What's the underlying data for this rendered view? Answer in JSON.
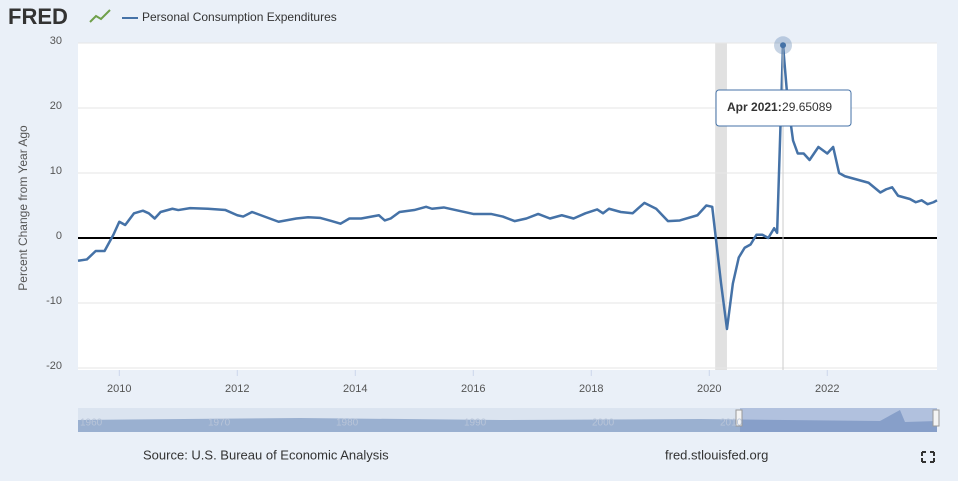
{
  "logo": "FRED",
  "chart_data": {
    "type": "line",
    "y_label": "Percent Change from Year Ago",
    "xlim": [
      2009.3,
      2023.86
    ],
    "xticks": [
      2010,
      2012,
      2014,
      2016,
      2018,
      2020,
      2022
    ],
    "ylim": [
      -20,
      30
    ],
    "yticks": [
      30,
      20,
      10,
      0,
      -10,
      -20
    ],
    "grid": true,
    "recession": [
      2020.1,
      2020.3
    ],
    "tooltip_label": "Apr 2021:",
    "x": [
      2009.3,
      2009.45,
      2009.6,
      2009.75,
      2009.9,
      2010.0,
      2010.1,
      2010.25,
      2010.4,
      2010.5,
      2010.6,
      2010.7,
      2010.9,
      2011.0,
      2011.2,
      2011.5,
      2011.8,
      2012.0,
      2012.1,
      2012.25,
      2012.4,
      2012.7,
      2013.0,
      2013.2,
      2013.4,
      2013.6,
      2013.75,
      2013.9,
      2014.1,
      2014.4,
      2014.5,
      2014.6,
      2014.75,
      2015.0,
      2015.2,
      2015.3,
      2015.5,
      2015.75,
      2016.0,
      2016.3,
      2016.5,
      2016.7,
      2016.9,
      2017.1,
      2017.3,
      2017.5,
      2017.7,
      2017.9,
      2018.1,
      2018.2,
      2018.3,
      2018.5,
      2018.7,
      2018.8,
      2018.9,
      2019.1,
      2019.3,
      2019.5,
      2019.8,
      2019.95,
      2020.05,
      2020.2,
      2020.3,
      2020.4,
      2020.5,
      2020.6,
      2020.7,
      2020.8,
      2020.9,
      2021.0,
      2021.1,
      2021.15,
      2021.25,
      2021.33,
      2021.42,
      2021.5,
      2021.6,
      2021.7,
      2021.85,
      2022.0,
      2022.1,
      2022.2,
      2022.3,
      2022.5,
      2022.7,
      2022.9,
      2023.0,
      2023.1,
      2023.2,
      2023.4,
      2023.5,
      2023.6,
      2023.7,
      2023.8,
      2023.86
    ],
    "series": [
      {
        "name": "Personal Consumption Expenditures",
        "color": "#4572a7",
        "values": [
          -3.5,
          -3.3,
          -2,
          -2,
          0.5,
          2.5,
          2.0,
          3.8,
          4.2,
          3.8,
          3.0,
          4.0,
          4.5,
          4.3,
          4.6,
          4.5,
          4.3,
          3.5,
          3.3,
          4.0,
          3.5,
          2.5,
          3.0,
          3.2,
          3.1,
          2.6,
          2.2,
          3.0,
          3.0,
          3.5,
          2.7,
          3.0,
          4.0,
          4.3,
          4.8,
          4.5,
          4.7,
          4.2,
          3.7,
          3.7,
          3.3,
          2.6,
          3.0,
          3.7,
          3.0,
          3.5,
          3.0,
          3.8,
          4.4,
          3.8,
          4.5,
          4.0,
          3.8,
          4.6,
          5.4,
          4.5,
          2.6,
          2.7,
          3.5,
          5.0,
          4.8,
          -7,
          -14,
          -7,
          -3,
          -1.5,
          -1,
          0.5,
          0.5,
          0,
          1.5,
          0.8,
          29.65089,
          21,
          15,
          13,
          13,
          12,
          14,
          13,
          14,
          10,
          9.5,
          9,
          8.5,
          7,
          7.5,
          7.8,
          6.5,
          6,
          5.5,
          5.8,
          5.2,
          5.5,
          5.8
        ]
      }
    ]
  },
  "navigator": {
    "labels": [
      "1960",
      "1970",
      "1980",
      "1990",
      "2000",
      "2010"
    ]
  },
  "footer": {
    "source": "Source: U.S. Bureau of Economic Analysis",
    "site": "fred.stlouisfed.org"
  }
}
